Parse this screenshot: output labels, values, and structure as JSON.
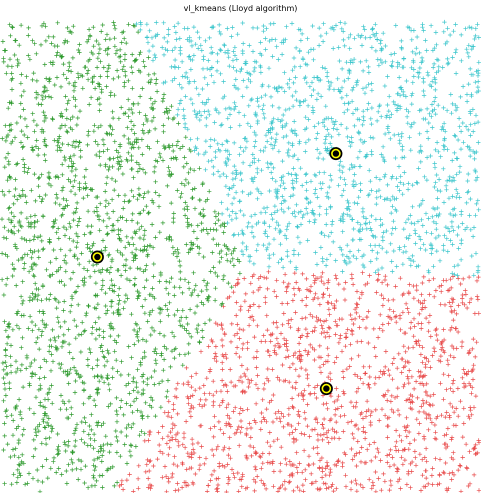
{
  "chart_data": {
    "type": "scatter",
    "title": "vl_kmeans (Lloyd algorithm)",
    "xlabel": "",
    "ylabel": "",
    "xlim": [
      0,
      1
    ],
    "ylim": [
      0,
      1
    ],
    "grid": false,
    "legend": "none",
    "marker": "plus",
    "points_per_cluster_approx": 1500,
    "colors": {
      "cluster_1": "#2e9a2e",
      "cluster_2": "#3cc6cc",
      "cluster_3": "#e84a4a",
      "centroid_outer": "#000000",
      "centroid_ring": "#ffff00"
    },
    "clusters": [
      {
        "id": 1,
        "color_key": "cluster_1",
        "centroid": [
          0.2,
          0.5
        ]
      },
      {
        "id": 2,
        "color_key": "cluster_2",
        "centroid": [
          0.7,
          0.72
        ]
      },
      {
        "id": 3,
        "color_key": "cluster_3",
        "centroid": [
          0.68,
          0.22
        ]
      }
    ]
  }
}
